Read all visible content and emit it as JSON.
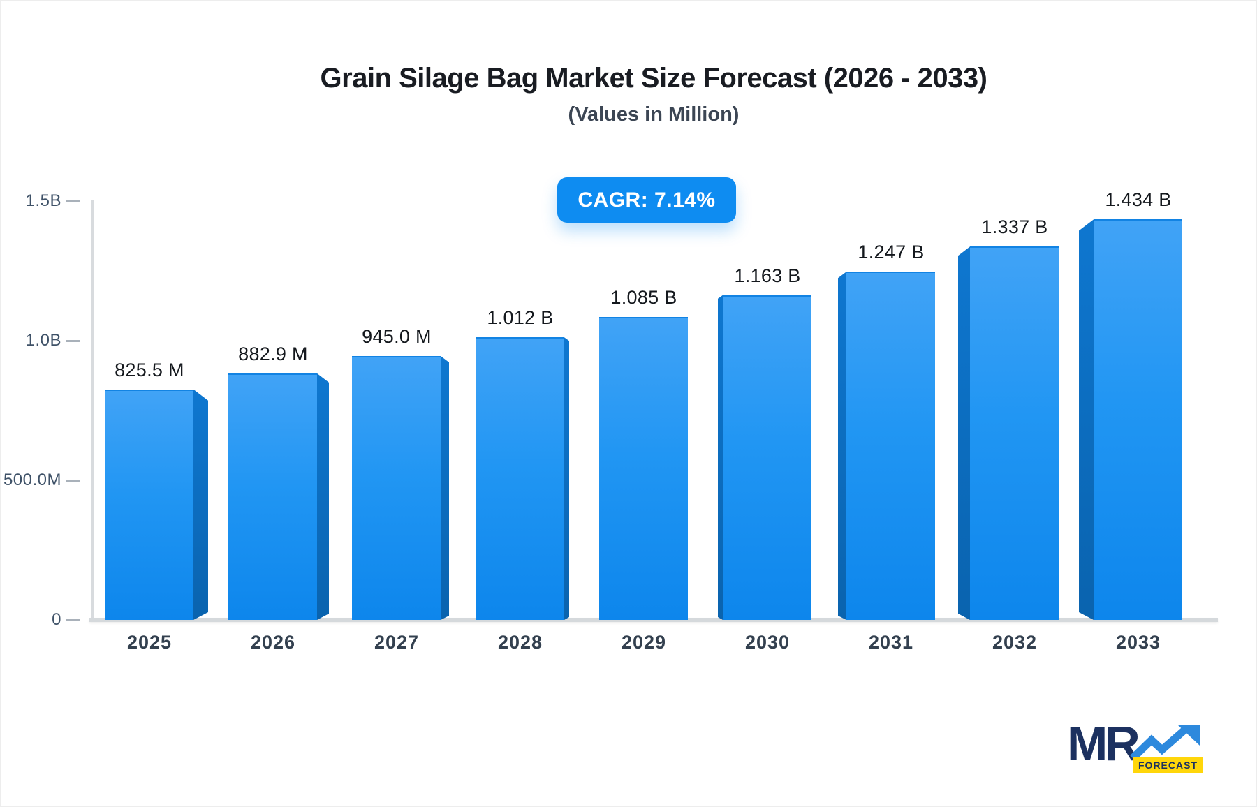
{
  "header": {
    "title": "Grain Silage Bag Market Size Forecast (2026 - 2033)",
    "subtitle": "(Values in Million)",
    "cagr_badge": "CAGR: 7.14%"
  },
  "chart_data": {
    "type": "bar",
    "title": "Grain Silage Bag Market Size Forecast (2026 - 2033)",
    "subtitle": "(Values in Million)",
    "cagr_percent": 7.14,
    "categories": [
      "2025",
      "2026",
      "2027",
      "2028",
      "2029",
      "2030",
      "2031",
      "2032",
      "2033"
    ],
    "values_millions": [
      825.5,
      882.9,
      945.0,
      1012,
      1085,
      1163,
      1247,
      1337,
      1434
    ],
    "value_labels": [
      "825.5 M",
      "882.9 M",
      "945.0 M",
      "1.012 B",
      "1.085 B",
      "1.163 B",
      "1.247 B",
      "1.337 B",
      "1.434 B"
    ],
    "xlabel": "",
    "ylabel": "",
    "ylim_millions": [
      0,
      1500
    ],
    "y_ticks": [
      {
        "label": "1.5B",
        "value_millions": 1500
      },
      {
        "label": "1.0B",
        "value_millions": 1000
      },
      {
        "label": "500.0M",
        "value_millions": 500
      },
      {
        "label": "0",
        "value_millions": 0
      }
    ],
    "grid": false,
    "legend": false,
    "bar_style": "3d-perspective-toward-center",
    "colors": {
      "bar_front_top": "#41a3f6",
      "bar_front_bottom": "#0d86ec",
      "bar_side": "#0b6bbd",
      "badge_bg": "#0e8cf1",
      "badge_text": "#ffffff",
      "axis_line": "#d8dbde",
      "tick_text": "#3f5268",
      "category_text": "#33404f",
      "value_text": "#14181d"
    }
  },
  "logo": {
    "mr": "MR",
    "forecast": "FORECAST",
    "navy": "#1c3160",
    "yellow": "#ffd60a",
    "arrow_blue": "#2d89dd"
  }
}
